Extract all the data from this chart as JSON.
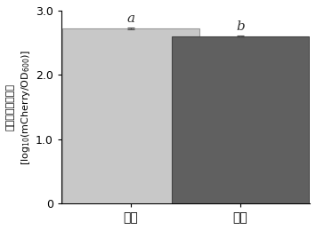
{
  "categories": [
    "对照",
    "菊糖"
  ],
  "values": [
    2.72,
    2.6
  ],
  "errors": [
    0.015,
    0.012
  ],
  "bar_colors": [
    "#c8c8c8",
    "#606060"
  ],
  "bar_edge_colors": [
    "#999999",
    "#444444"
  ],
  "significance_labels": [
    "a",
    "b"
  ],
  "ylabel_chinese": "青枯菌相对生长量",
  "ylabel_math": "[log$_{10}$(mCherry/OD$_{600}$)]",
  "ylim": [
    0,
    3.0
  ],
  "yticks": [
    0,
    1.0,
    2.0,
    3.0
  ],
  "ytick_labels": [
    "0",
    "1.0",
    "2.0",
    "3.0"
  ],
  "bar_width": 0.55,
  "x_positions": [
    0.28,
    0.72
  ],
  "figure_facecolor": "#ffffff",
  "axes_facecolor": "#ffffff",
  "sig_fontsize": 11,
  "tick_fontsize": 9,
  "ylabel_fontsize": 8,
  "xlabel_fontsize": 10
}
